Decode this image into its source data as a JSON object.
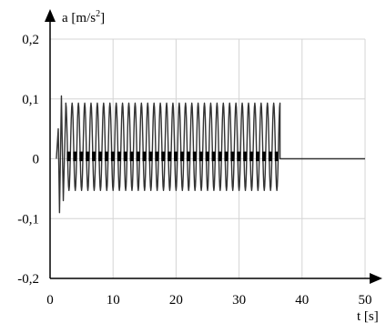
{
  "chart_data": {
    "type": "line",
    "title": "",
    "xlabel": "t [s]",
    "ylabel": "a [m/s²]",
    "ylabel_parts": {
      "pre": "a [m/s",
      "sup": "2",
      "post": "]"
    },
    "xlim": [
      0,
      50
    ],
    "ylim": [
      -0.2,
      0.2
    ],
    "grid": true,
    "legend": "none",
    "x_ticks": [
      {
        "value": 0,
        "label": "0"
      },
      {
        "value": 10,
        "label": "10"
      },
      {
        "value": 20,
        "label": "20"
      },
      {
        "value": 30,
        "label": "30"
      },
      {
        "value": 40,
        "label": "40"
      },
      {
        "value": 50,
        "label": "50"
      }
    ],
    "y_ticks": [
      {
        "value": -0.2,
        "label": "-0,2"
      },
      {
        "value": -0.1,
        "label": "-0,1"
      },
      {
        "value": 0,
        "label": "0"
      },
      {
        "value": 0.1,
        "label": "0,1"
      },
      {
        "value": 0.2,
        "label": "0,2"
      }
    ],
    "series": [
      {
        "color": "#333333",
        "transient": [
          {
            "x": 1.0,
            "y": 0.0
          },
          {
            "x": 1.3,
            "y": 0.05
          },
          {
            "x": 1.5,
            "y": -0.09
          },
          {
            "x": 1.8,
            "y": 0.105
          },
          {
            "x": 2.1,
            "y": -0.07
          },
          {
            "x": 2.5,
            "y": 0.09
          }
        ],
        "oscillation": {
          "x_start": 2.5,
          "x_end": 36.5,
          "period": 1.0,
          "y_max": 0.093,
          "y_min": -0.053
        },
        "tail": [
          {
            "x": 36.5,
            "y": 0.0
          },
          {
            "x": 50.0,
            "y": 0.0
          }
        ]
      }
    ]
  }
}
